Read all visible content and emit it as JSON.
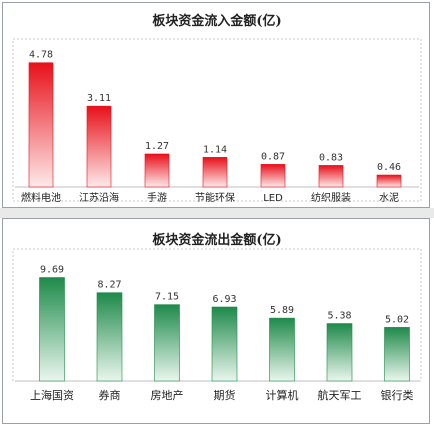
{
  "chart_data": [
    {
      "type": "bar",
      "title": "板块资金流入金额(亿)",
      "categories": [
        "燃料电池",
        "江苏沿海",
        "手游",
        "节能环保",
        "LED",
        "纺织服装",
        "水泥"
      ],
      "values": [
        4.78,
        3.11,
        1.27,
        1.14,
        0.87,
        0.83,
        0.46
      ],
      "value_labels": [
        "4.78",
        "3.11",
        "1.27",
        "1.14",
        "0.87",
        "0.83",
        "0.46"
      ],
      "ylim": [
        0,
        5.0
      ],
      "color": "#e8101a",
      "grid": false,
      "legend": "none"
    },
    {
      "type": "bar",
      "title": "板块资金流出金额(亿)",
      "categories": [
        "上海国资",
        "券商",
        "房地产",
        "期货",
        "计算机",
        "航天军工",
        "银行类"
      ],
      "values": [
        9.69,
        8.27,
        7.15,
        6.93,
        5.89,
        5.38,
        5.02
      ],
      "value_labels": [
        "9.69",
        "8.27",
        "7.15",
        "6.93",
        "5.89",
        "5.38",
        "5.02"
      ],
      "ylim": [
        0,
        10.3
      ],
      "color": "#1e8a4a",
      "grid": false,
      "legend": "none"
    }
  ]
}
